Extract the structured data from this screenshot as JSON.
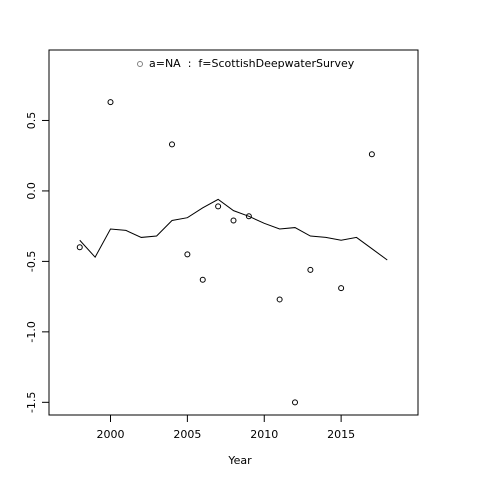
{
  "chart_data": {
    "type": "scatter-line",
    "xlabel": "Year",
    "legend": "top",
    "legend_color": "#808080",
    "xlim": [
      1996,
      2020
    ],
    "xticks": [
      2000,
      2005,
      2010,
      2015
    ],
    "ylim": [
      -1.59,
      1.0
    ],
    "yticks": [
      0.5,
      {
        "value": 0,
        "label": "0.0"
      },
      -0.5,
      {
        "value": -1,
        "label": "-1.0"
      },
      -1.5
    ],
    "series": [
      {
        "name": "a=NA  :  f=ScottishDeepwaterSurvey",
        "type": "scatter",
        "color": "#000000",
        "x": [
          1998,
          2000,
          2004,
          2005,
          2006,
          2007,
          2008,
          2009,
          2011,
          2012,
          2013,
          2015,
          2017
        ],
        "values": [
          -0.4,
          0.63,
          0.33,
          -0.45,
          -0.63,
          -0.11,
          -0.21,
          -0.18,
          -0.77,
          -1.5,
          -0.56,
          -0.69,
          0.26
        ]
      },
      {
        "type": "line",
        "color": "#000000",
        "x": [
          1998,
          1999,
          2000,
          2001,
          2002,
          2003,
          2004,
          2005,
          2006,
          2007,
          2008,
          2009,
          2010,
          2011,
          2012,
          2013,
          2014,
          2015,
          2016,
          2017,
          2018
        ],
        "values": [
          -0.35,
          -0.47,
          -0.27,
          -0.28,
          -0.33,
          -0.32,
          -0.21,
          -0.19,
          -0.12,
          -0.06,
          -0.14,
          -0.18,
          -0.23,
          -0.27,
          -0.26,
          -0.32,
          -0.33,
          -0.35,
          -0.33,
          -0.41,
          -0.49
        ]
      }
    ]
  }
}
